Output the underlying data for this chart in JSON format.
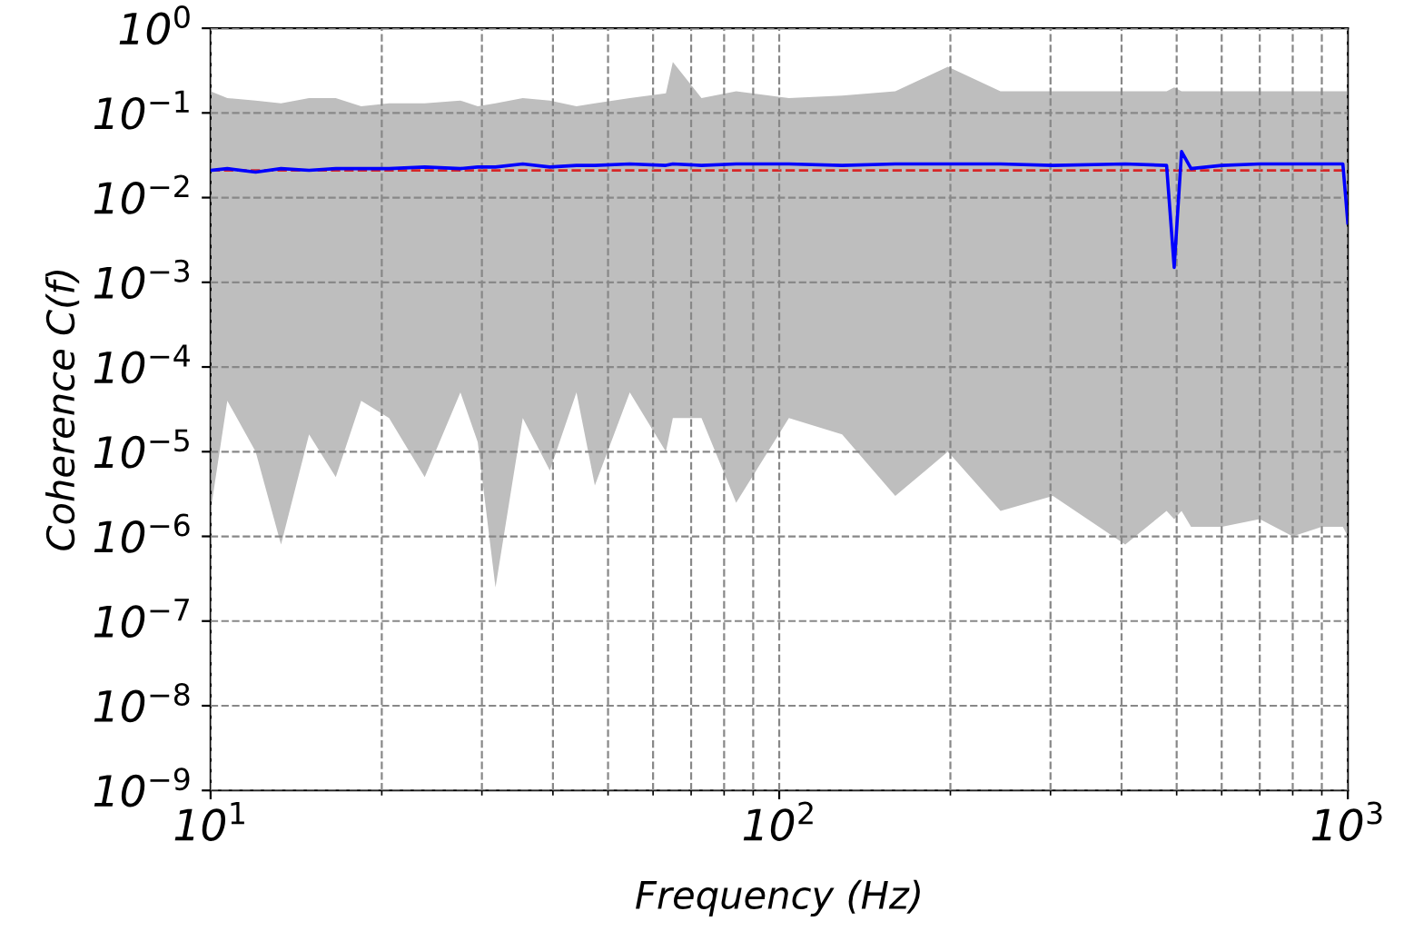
{
  "chart_data": {
    "type": "line",
    "xlabel": "Frequency (Hz)",
    "ylabel": "Coherence C(f)",
    "log": "xy",
    "grid": true,
    "xlim": [
      10,
      1000
    ],
    "ylim": [
      1e-09,
      1
    ],
    "xticks": [
      {
        "value": 10,
        "label": "10$^{1}$"
      },
      {
        "value": 100,
        "label": "10$^{2}$"
      },
      {
        "value": 1000,
        "label": "10$^{3}$"
      }
    ],
    "yticks": [
      {
        "value": 1e-09,
        "label": "10$^{−9}$"
      },
      {
        "value": 1e-08,
        "label": "10$^{−8}$"
      },
      {
        "value": 1e-07,
        "label": "10$^{−7}$"
      },
      {
        "value": 1e-06,
        "label": "10$^{−6}$"
      },
      {
        "value": 1e-05,
        "label": "10$^{−5}$"
      },
      {
        "value": 0.0001,
        "label": "10$^{−4}$"
      },
      {
        "value": 0.001,
        "label": "10$^{−3}$"
      },
      {
        "value": 0.01,
        "label": "10$^{−2}$"
      },
      {
        "value": 0.1,
        "label": "10$^{−1}$"
      },
      {
        "value": 1,
        "label": "10$^{0}$"
      }
    ],
    "ref_lines": [
      {
        "axis": "y",
        "value": 0.021,
        "color": "#d62728",
        "line_style": "dashed"
      }
    ],
    "series": [
      {
        "color": "#0000ff",
        "x": [
          10,
          10.7,
          12,
          13.3,
          14.9,
          16.6,
          18.4,
          20.6,
          23.8,
          27.5,
          29.5,
          31.7,
          35.4,
          39.5,
          44,
          47.4,
          54.6,
          63.2,
          65,
          73,
          84,
          104,
          129,
          160,
          198,
          245,
          303,
          406,
          480,
          495,
          510,
          530,
          600,
          700,
          800,
          900,
          980,
          1000
        ],
        "values": [
          0.021,
          0.022,
          0.02,
          0.022,
          0.021,
          0.022,
          0.022,
          0.022,
          0.023,
          0.022,
          0.023,
          0.023,
          0.025,
          0.023,
          0.024,
          0.024,
          0.025,
          0.024,
          0.025,
          0.024,
          0.025,
          0.025,
          0.024,
          0.025,
          0.025,
          0.025,
          0.024,
          0.025,
          0.024,
          0.0015,
          0.035,
          0.022,
          0.024,
          0.025,
          0.025,
          0.025,
          0.025,
          0.005
        ],
        "lower": [
          2e-06,
          4e-05,
          1e-05,
          8e-07,
          1.6e-05,
          5e-06,
          4e-05,
          2.5e-05,
          5e-06,
          5e-05,
          1.3e-05,
          2.5e-07,
          2.5e-05,
          6e-06,
          5e-05,
          4e-06,
          5e-05,
          1e-05,
          2.5e-05,
          2.5e-05,
          2.5e-06,
          2.5e-05,
          1.6e-05,
          3e-06,
          1e-05,
          2e-06,
          3e-06,
          8e-07,
          2e-06,
          1.6e-06,
          2e-06,
          1.3e-06,
          1.3e-06,
          1.6e-06,
          1e-06,
          1.3e-06,
          1.3e-06,
          1e-06
        ],
        "upper": [
          0.18,
          0.15,
          0.14,
          0.13,
          0.15,
          0.15,
          0.12,
          0.13,
          0.13,
          0.14,
          0.12,
          0.13,
          0.15,
          0.14,
          0.12,
          0.13,
          0.15,
          0.17,
          0.4,
          0.15,
          0.18,
          0.15,
          0.16,
          0.18,
          0.35,
          0.18,
          0.18,
          0.18,
          0.18,
          0.2,
          0.18,
          0.18,
          0.18,
          0.18,
          0.18,
          0.18,
          0.18,
          0.18
        ]
      }
    ]
  }
}
